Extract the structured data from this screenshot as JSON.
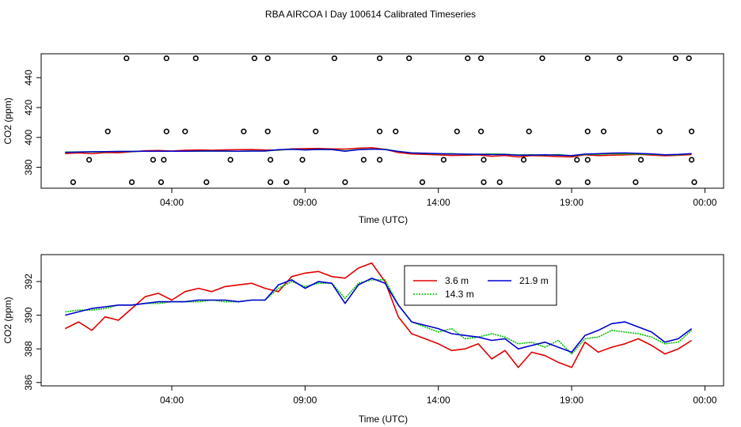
{
  "title": "RBA AIRCOA I  Day 100614  Calibrated Timeseries",
  "colors": {
    "s36": "#e00000",
    "s143": "#00c000",
    "s219": "#0000d0",
    "frame": "#000000"
  },
  "chart_data": [
    {
      "type": "line+scatter",
      "panel": "top",
      "xlabel": "Time (UTC)",
      "ylabel": "CO2 (ppm)",
      "x_unit": "hours since 00:00 of day",
      "xlim": [
        -0.9,
        24.7
      ],
      "ylim": [
        366,
        456
      ],
      "x_ticks": [
        4,
        9,
        14,
        19,
        24
      ],
      "x_tick_labels": [
        "04:00",
        "09:00",
        "14:00",
        "19:00",
        "00:00"
      ],
      "y_ticks": [
        380,
        400,
        420,
        440
      ],
      "y_tick_labels": [
        "380",
        "400",
        "420",
        "440"
      ],
      "series_note": "Three inlet series (3.6 m, 14.3 m, 21.9 m) near 386–393 ppm; same data as bottom panel",
      "calibration_points": {
        "marker": "open circle",
        "x": [
          2.3,
          3.8,
          4.9,
          7.1,
          7.6,
          10.1,
          11.8,
          12.9,
          15.1,
          15.6,
          17.9,
          19.6,
          20.8,
          22.9,
          23.4,
          1.6,
          3.8,
          4.5,
          6.7,
          7.6,
          9.4,
          11.8,
          12.4,
          14.7,
          15.6,
          17.4,
          19.6,
          20.2,
          22.3,
          23.5,
          0.9,
          3.3,
          3.7,
          6.2,
          7.7,
          8.9,
          11.2,
          11.8,
          14.2,
          15.7,
          17.2,
          19.2,
          19.6,
          21.6,
          23.5,
          0.3,
          2.5,
          3.6,
          5.3,
          7.7,
          8.3,
          10.5,
          13.4,
          15.7,
          16.3,
          18.5,
          19.6,
          21.4,
          23.6
        ],
        "y": [
          453,
          453,
          453,
          453,
          453,
          453,
          453,
          453,
          453,
          453,
          453,
          453,
          453,
          453,
          453,
          404,
          404,
          404,
          404,
          404,
          404,
          404,
          404,
          404,
          404,
          404,
          404,
          404,
          404,
          404,
          385,
          385,
          385,
          385,
          385,
          385,
          385,
          385,
          385,
          385,
          385,
          385,
          385,
          385,
          385,
          370,
          370,
          370,
          370,
          370,
          370,
          370,
          370,
          370,
          370,
          370,
          370,
          370,
          370
        ]
      }
    },
    {
      "type": "line",
      "panel": "bottom",
      "xlabel": "Time (UTC)",
      "ylabel": "CO2 (ppm)",
      "x_unit": "hours since 00:00 of day",
      "xlim": [
        -0.9,
        24.7
      ],
      "ylim": [
        385.8,
        393.6
      ],
      "x_ticks": [
        4,
        9,
        14,
        19,
        24
      ],
      "x_tick_labels": [
        "04:00",
        "09:00",
        "14:00",
        "19:00",
        "00:00"
      ],
      "y_ticks": [
        386,
        388,
        390,
        392
      ],
      "y_tick_labels": [
        "386",
        "388",
        "390",
        "392"
      ],
      "legend_position": "top-right",
      "x": [
        0,
        0.5,
        1,
        1.5,
        2,
        2.5,
        3,
        3.5,
        4,
        4.5,
        5,
        5.5,
        6,
        6.5,
        7,
        7.5,
        8,
        8.5,
        9,
        9.5,
        10,
        10.5,
        11,
        11.5,
        12,
        12.5,
        13,
        13.5,
        14,
        14.5,
        15,
        15.5,
        16,
        16.5,
        17,
        17.5,
        18,
        18.5,
        19,
        19.5,
        20,
        20.5,
        21,
        21.5,
        22,
        22.5,
        23,
        23.5
      ],
      "series": [
        {
          "name": "3.6 m",
          "color": "#e00000",
          "values": [
            389.2,
            389.6,
            389.1,
            389.9,
            389.7,
            390.4,
            391.1,
            391.3,
            390.9,
            391.4,
            391.6,
            391.4,
            391.7,
            391.8,
            391.9,
            391.6,
            391.4,
            392.3,
            392.5,
            392.6,
            392.3,
            392.2,
            392.8,
            393.1,
            392.0,
            389.9,
            388.9,
            388.6,
            388.3,
            387.9,
            388.0,
            388.3,
            387.4,
            387.9,
            386.9,
            387.8,
            387.6,
            387.2,
            386.9,
            388.4,
            387.8,
            388.1,
            388.3,
            388.6,
            388.2,
            387.7,
            388.0,
            388.5
          ]
        },
        {
          "name": "14.3 m",
          "color": "#00c000",
          "values": [
            390.2,
            390.3,
            390.3,
            390.4,
            390.6,
            390.6,
            390.7,
            390.7,
            390.8,
            390.8,
            390.8,
            390.9,
            390.8,
            390.8,
            390.9,
            390.9,
            391.6,
            392.0,
            391.7,
            391.9,
            391.9,
            391.0,
            391.9,
            392.1,
            392.1,
            390.6,
            389.6,
            389.3,
            389.0,
            389.2,
            388.6,
            388.7,
            388.9,
            388.7,
            388.3,
            388.4,
            388.1,
            388.5,
            387.7,
            388.6,
            388.7,
            389.1,
            389.0,
            388.9,
            388.7,
            388.3,
            388.4,
            389.1
          ]
        },
        {
          "name": "21.9 m",
          "color": "#0000d0",
          "values": [
            390.0,
            390.2,
            390.4,
            390.5,
            390.6,
            390.6,
            390.7,
            390.8,
            390.8,
            390.8,
            390.9,
            390.9,
            390.9,
            390.8,
            390.9,
            390.9,
            391.8,
            392.1,
            391.6,
            392.0,
            391.9,
            390.7,
            391.8,
            392.2,
            391.9,
            390.6,
            389.6,
            389.4,
            389.2,
            388.9,
            388.8,
            388.7,
            388.5,
            388.6,
            388.0,
            388.2,
            388.4,
            388.1,
            387.8,
            388.8,
            389.1,
            389.5,
            389.6,
            389.3,
            389.0,
            388.4,
            388.6,
            389.2
          ]
        }
      ]
    }
  ]
}
